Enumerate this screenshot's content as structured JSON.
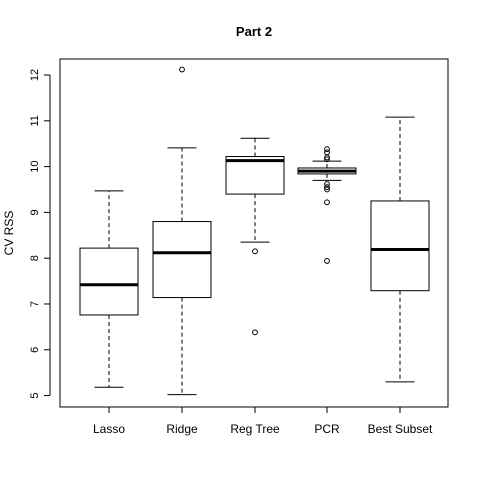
{
  "chart_data": {
    "type": "boxplot",
    "title": "Part 2",
    "ylabel": "CV RSS",
    "xlabel": "",
    "ylim": [
      4.75,
      12.35
    ],
    "yticks": [
      5,
      6,
      7,
      8,
      9,
      10,
      11,
      12
    ],
    "ytick_labels": [
      "5",
      "6",
      "7",
      "8",
      "9",
      "10",
      "11",
      "12"
    ],
    "grid": false,
    "legend": "none",
    "categories": [
      "Lasso",
      "Ridge",
      "Reg Tree",
      "PCR",
      "Best Subset"
    ],
    "boxes": [
      {
        "name": "Lasso",
        "whisker_low": 5.18,
        "q1": 6.76,
        "median": 7.42,
        "q3": 8.22,
        "whisker_high": 9.47,
        "outliers": []
      },
      {
        "name": "Ridge",
        "whisker_low": 5.02,
        "q1": 7.14,
        "median": 8.12,
        "q3": 8.8,
        "whisker_high": 10.41,
        "outliers": [
          12.12
        ]
      },
      {
        "name": "Reg Tree",
        "whisker_low": 8.35,
        "q1": 9.4,
        "median": 10.13,
        "q3": 10.22,
        "whisker_high": 10.62,
        "outliers": [
          8.15,
          6.38
        ]
      },
      {
        "name": "PCR",
        "whisker_low": 9.7,
        "q1": 9.84,
        "median": 9.9,
        "q3": 9.97,
        "whisker_high": 10.12,
        "outliers": [
          10.38,
          10.31,
          10.2,
          10.16,
          9.62,
          9.55,
          9.5,
          9.22,
          7.94
        ]
      },
      {
        "name": "Best Subset",
        "whisker_low": 5.3,
        "q1": 7.29,
        "median": 8.19,
        "q3": 9.25,
        "whisker_high": 11.08,
        "outliers": []
      }
    ],
    "colors": {
      "box_fill": "#ffffff",
      "stroke": "#000000",
      "median": "#000000"
    }
  }
}
